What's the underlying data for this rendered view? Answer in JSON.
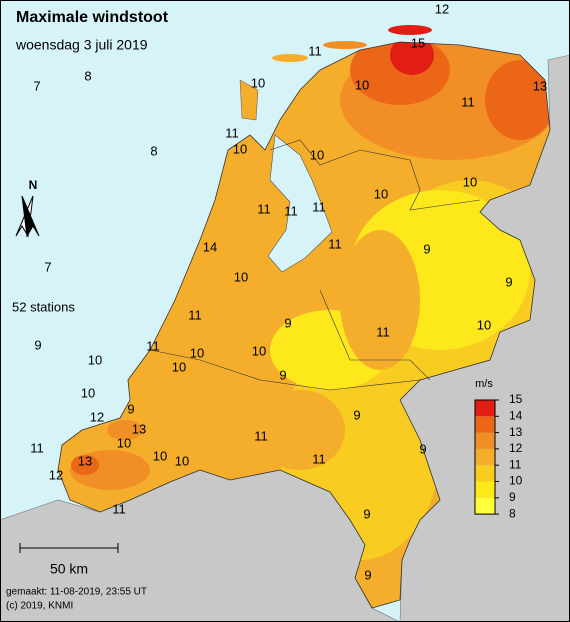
{
  "title": "Maximale windstoot",
  "subtitle": "woensdag 3 juli 2019",
  "station_count": "52 stations",
  "scale_label": "50 km",
  "north": "N",
  "made": "gemaakt: 11-08-2019, 23:55 UT",
  "copyright": "(c) 2019, KNMI",
  "legend": {
    "unit": "m/s",
    "ticks": [
      8,
      9,
      10,
      11,
      12,
      13,
      14,
      15
    ],
    "colors": [
      "#ffff3c",
      "#fde81c",
      "#f9cc22",
      "#f4ae2c",
      "#f18f26",
      "#ec6618",
      "#e11d14"
    ]
  },
  "stations": [
    12,
    15,
    11,
    7,
    8,
    10,
    10,
    13,
    11,
    11,
    10,
    8,
    10,
    10,
    10,
    11,
    11,
    11,
    11,
    14,
    9,
    7,
    10,
    9,
    11,
    9,
    11,
    10,
    9,
    11,
    10,
    10,
    10,
    10,
    9,
    10,
    12,
    13,
    9,
    11,
    9,
    10,
    10,
    10,
    11,
    9,
    13,
    11,
    12,
    11,
    9,
    9
  ]
}
